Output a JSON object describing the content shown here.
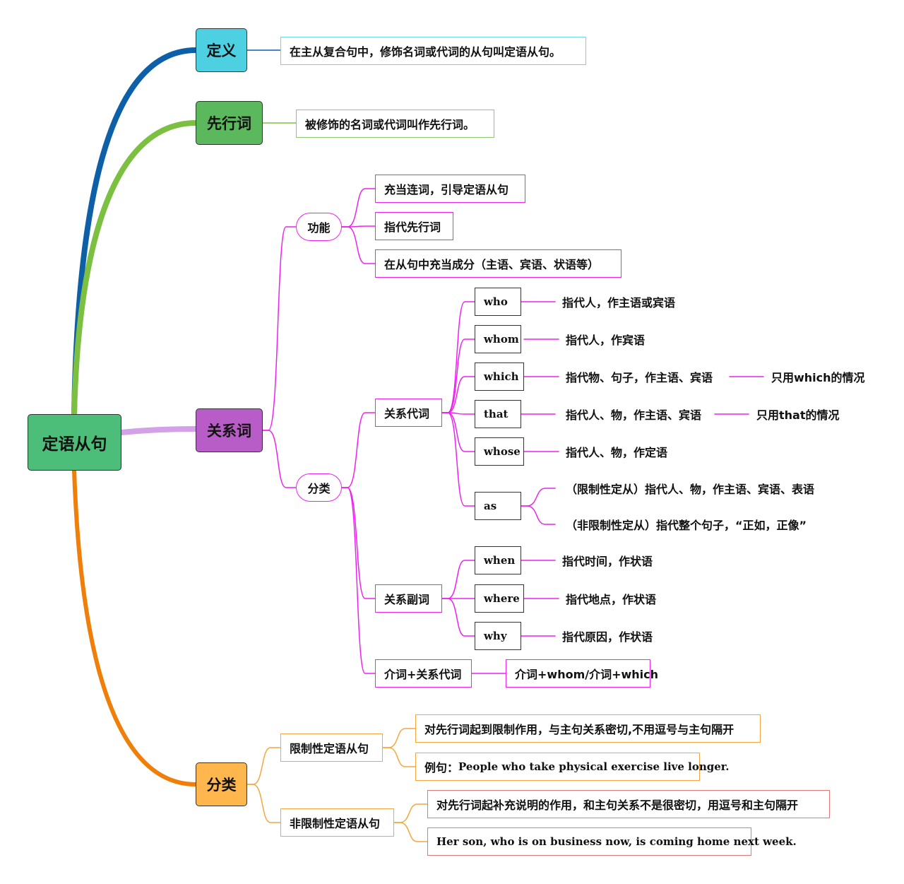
{
  "colors": {
    "definition": "#4dd0e1",
    "antecedent": "#5cb85c",
    "relative": "#b85cc8",
    "classification": "#ffb74d",
    "root": "#4dbd7a",
    "magenta": "#ee22ee"
  },
  "root": "定语从句",
  "definition": {
    "label": "定义",
    "text": "在主从复合句中，修饰名词或代词的从句叫定语从句。"
  },
  "antecedent": {
    "label": "先行词",
    "text": "被修饰的名词或代词叫作先行词。"
  },
  "relative": {
    "label": "关系词",
    "function": {
      "label": "功能",
      "items": [
        "充当连词，引导定语从句",
        "指代先行词",
        "在从句中充当成分（主语、宾语、状语等）"
      ]
    },
    "category": {
      "label": "分类",
      "pronouns": {
        "label": "关系代词",
        "items": [
          {
            "word": "who",
            "desc": "指代人，作主语或宾语"
          },
          {
            "word": "whom",
            "desc": "指代人，作宾语"
          },
          {
            "word": "which",
            "desc": "指代物、句子，作主语、宾语",
            "note": "只用which的情况"
          },
          {
            "word": "that",
            "desc": "指代人、物，作主语、宾语",
            "note": "只用that的情况"
          },
          {
            "word": "whose",
            "desc": "指代人、物，作定语"
          },
          {
            "word": "as",
            "desc1": "（限制性定从）指代人、物，作主语、宾语、表语",
            "desc2": "（非限制性定从）指代整个句子，“正如，正像”"
          }
        ]
      },
      "adverbs": {
        "label": "关系副词",
        "items": [
          {
            "word": "when",
            "desc": "指代时间，作状语"
          },
          {
            "word": "where",
            "desc": "指代地点，作状语"
          },
          {
            "word": "why",
            "desc": "指代原因，作状语"
          }
        ]
      },
      "prep": {
        "label": "介词+关系代词",
        "text": "介词+whom/介词+which"
      }
    }
  },
  "classification": {
    "label": "分类",
    "restrictive": {
      "label": "限制性定语从句",
      "desc": "对先行词起到限制作用，与主句关系密切,不用逗号与主句隔开",
      "example_prefix": "例句：",
      "example": "People who take physical exercise live longer."
    },
    "nonrestrictive": {
      "label": "非限制性定语从句",
      "desc": "对先行词起补充说明的作用，和主句关系不是很密切，用逗号和主句隔开",
      "example": "Her son, who is on business now, is coming home next week."
    }
  }
}
